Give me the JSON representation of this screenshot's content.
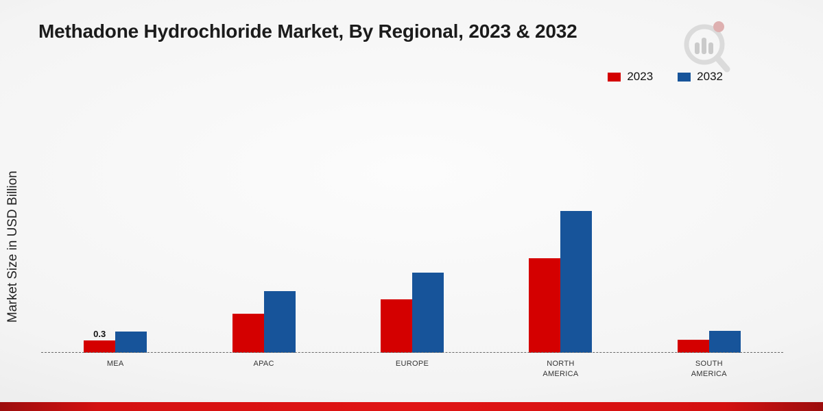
{
  "title": "Methadone Hydrochloride Market, By Regional, 2023 & 2032",
  "chart_data": {
    "type": "bar",
    "title": "Methadone Hydrochloride Market, By Regional, 2023 & 2032",
    "xlabel": "",
    "ylabel": "Market Size in USD Billion",
    "categories": [
      "MEA",
      "APAC",
      "EUROPE",
      "NORTH AMERICA",
      "SOUTH AMERICA"
    ],
    "series": [
      {
        "name": "2023",
        "color": "#d40000",
        "values": [
          0.3,
          0.95,
          1.3,
          2.3,
          0.32
        ]
      },
      {
        "name": "2032",
        "color": "#17549a",
        "values": [
          0.52,
          1.5,
          1.95,
          3.45,
          0.53
        ]
      }
    ],
    "annotations": [
      {
        "category": "MEA",
        "series": "2023",
        "text": "0.3"
      }
    ],
    "ylim": [
      0,
      3.6
    ],
    "grid": false,
    "legend_position": "top-right",
    "baseline_style": "dashed"
  },
  "footer": {
    "accent_color": "#d41111"
  }
}
